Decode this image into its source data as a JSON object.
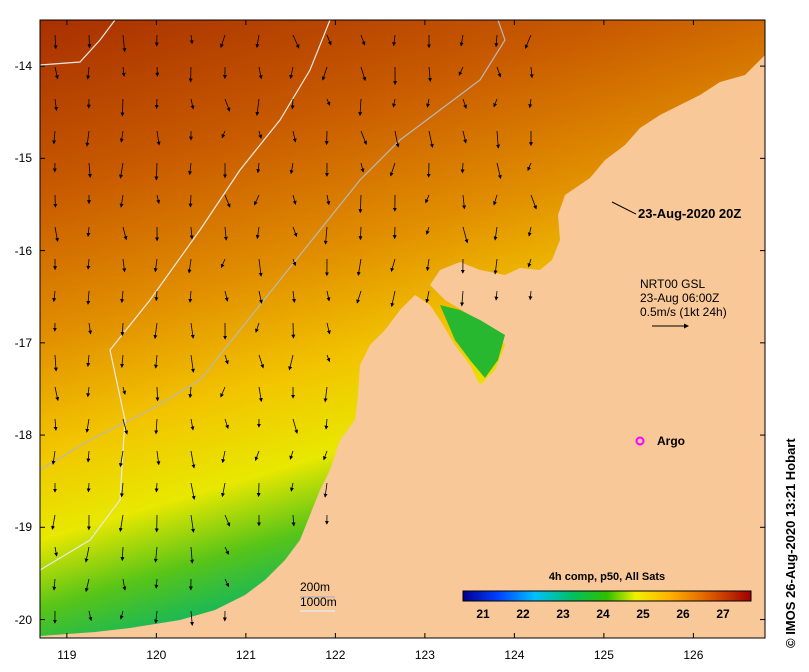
{
  "map": {
    "y_ticks": [
      "-14",
      "-15",
      "-16",
      "-17",
      "-18",
      "-19",
      "-20"
    ],
    "x_ticks": [
      "119",
      "120",
      "121",
      "122",
      "123",
      "124",
      "125",
      "126"
    ],
    "lon_range": [
      118.7,
      126.8
    ],
    "lat_range": [
      -20.2,
      -13.5
    ]
  },
  "annotations": {
    "timestamp_label": "23-Aug-2020 20Z",
    "current_info": [
      "NRT00 GSL",
      "23-Aug 06:00Z",
      "0.5m/s (1kt 24h)"
    ],
    "argo_label": "Argo",
    "depth_200": "200m",
    "depth_1000": "1000m"
  },
  "colorbar": {
    "title": "4h comp, p50, All Sats",
    "ticks": [
      "21",
      "22",
      "23",
      "24",
      "25",
      "26",
      "27"
    ],
    "range": [
      20.5,
      27.7
    ]
  },
  "footer": {
    "stamp": "© IMOS 26-Aug-2020 13:21 Hobart"
  },
  "colors": {
    "land": "#f8c898",
    "argo_marker": "#ff00ff"
  }
}
